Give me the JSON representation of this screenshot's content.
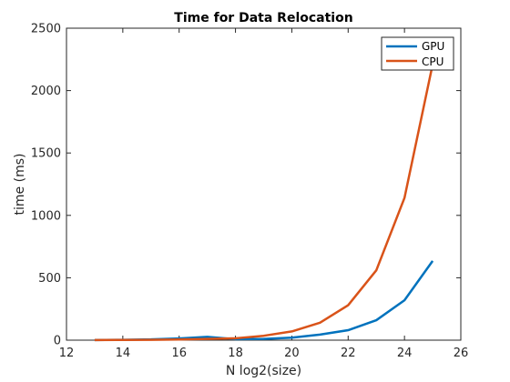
{
  "chart_data": {
    "type": "line",
    "title": "Time for Data Relocation",
    "xlabel": "N log2(size)",
    "ylabel": "time (ms)",
    "xlim": [
      12,
      26
    ],
    "ylim": [
      0,
      2500
    ],
    "xticks": [
      12,
      14,
      16,
      18,
      20,
      22,
      24,
      26
    ],
    "yticks": [
      0,
      500,
      1000,
      1500,
      2000,
      2500
    ],
    "grid": false,
    "legend_position": "top-right",
    "x": [
      13,
      14,
      15,
      16,
      17,
      18,
      19,
      20,
      21,
      22,
      23,
      24,
      25
    ],
    "series": [
      {
        "name": "GPU",
        "color": "#0072BD",
        "values": [
          1,
          3,
          6,
          14,
          26,
          8,
          10,
          20,
          45,
          80,
          160,
          320,
          635
        ]
      },
      {
        "name": "CPU",
        "color": "#D95319",
        "values": [
          1,
          2,
          3,
          5,
          10,
          15,
          35,
          70,
          140,
          280,
          560,
          1140,
          2210
        ]
      }
    ]
  }
}
